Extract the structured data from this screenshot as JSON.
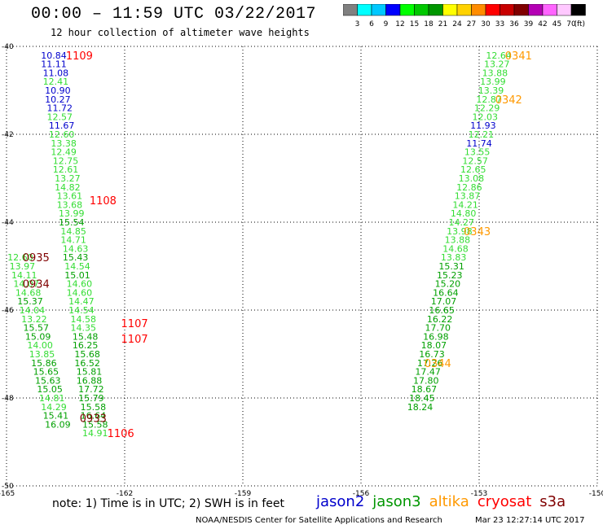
{
  "header": {
    "title": "00:00 – 11:59 UTC 03/22/2017",
    "subtitle": "12 hour collection of altimeter wave heights"
  },
  "color_scale": {
    "labels": [
      "3",
      "6",
      "9",
      "12",
      "15",
      "18",
      "21",
      "24",
      "27",
      "30",
      "33",
      "36",
      "39",
      "42",
      "45",
      "70"
    ],
    "unit": "(ft)",
    "colors": [
      "#808080",
      "#00ffff",
      "#00c8ff",
      "#0000ff",
      "#00ff00",
      "#00c800",
      "#009600",
      "#ffff00",
      "#ffd200",
      "#ff8c00",
      "#ff0000",
      "#c80000",
      "#800000",
      "#b400b4",
      "#ff64ff",
      "#ffc8ff",
      "#000000"
    ]
  },
  "footer": {
    "note": "note:  1) Time is in UTC;  2) SWH is in feet",
    "satellites": [
      {
        "name": "jason2",
        "color": "#0000cc"
      },
      {
        "name": "jason3",
        "color": "#009600"
      },
      {
        "name": "altika",
        "color": "#ff9900"
      },
      {
        "name": "cryosat",
        "color": "#ff0000"
      },
      {
        "name": "s3a",
        "color": "#800000"
      }
    ],
    "credit": "NOAA/NESDIS Center for Satellite Applications and Research",
    "timestamp": "Mar 23 12:27:14 UTC 2017"
  },
  "chart_data": {
    "type": "scatter",
    "title": "00:00 – 11:59 UTC 03/22/2017",
    "subtitle": "12 hour collection of altimeter wave heights",
    "xlim": [
      -165,
      -150
    ],
    "ylim": [
      -50,
      -40
    ],
    "x_ticks": [
      -165,
      -162,
      -159,
      -156,
      -153,
      -150
    ],
    "y_ticks": [
      -40,
      -42,
      -44,
      -46,
      -48,
      -50
    ],
    "grid": true,
    "colors": {
      "grey": "#808080",
      "blue": "#0000cc",
      "light": "#33dd33",
      "green": "#00a000",
      "orange": "#ff9900",
      "red": "#ff0000",
      "maroon": "#800000"
    },
    "points": [
      {
        "x": -163.8,
        "y": -40.2,
        "v": "10.84",
        "c": "blue"
      },
      {
        "x": -163.8,
        "y": -40.4,
        "v": "11.11",
        "c": "blue"
      },
      {
        "x": -163.75,
        "y": -40.6,
        "v": "11.08",
        "c": "blue"
      },
      {
        "x": -163.75,
        "y": -40.8,
        "v": "12.41",
        "c": "light"
      },
      {
        "x": -163.7,
        "y": -41.0,
        "v": "10.90",
        "c": "blue"
      },
      {
        "x": -163.7,
        "y": -41.2,
        "v": "10.27",
        "c": "blue"
      },
      {
        "x": -163.65,
        "y": -41.4,
        "v": "11.72",
        "c": "blue"
      },
      {
        "x": -163.65,
        "y": -41.6,
        "v": "12.57",
        "c": "light"
      },
      {
        "x": -163.6,
        "y": -41.8,
        "v": "11.67",
        "c": "blue"
      },
      {
        "x": -163.6,
        "y": -42.0,
        "v": "12.60",
        "c": "light"
      },
      {
        "x": -163.55,
        "y": -42.2,
        "v": "13.38",
        "c": "light"
      },
      {
        "x": -163.55,
        "y": -42.4,
        "v": "12.49",
        "c": "light"
      },
      {
        "x": -163.5,
        "y": -42.6,
        "v": "12.75",
        "c": "light"
      },
      {
        "x": -163.5,
        "y": -42.8,
        "v": "12.61",
        "c": "light"
      },
      {
        "x": -163.45,
        "y": -43.0,
        "v": "13.27",
        "c": "light"
      },
      {
        "x": -163.45,
        "y": -43.2,
        "v": "14.82",
        "c": "light"
      },
      {
        "x": -163.4,
        "y": -43.4,
        "v": "13.61",
        "c": "light"
      },
      {
        "x": -163.4,
        "y": -43.6,
        "v": "13.68",
        "c": "light"
      },
      {
        "x": -163.35,
        "y": -43.8,
        "v": "13.99",
        "c": "light"
      },
      {
        "x": -163.35,
        "y": -44.0,
        "v": "15.54",
        "c": "green"
      },
      {
        "x": -163.3,
        "y": -44.2,
        "v": "14.85",
        "c": "light"
      },
      {
        "x": -163.3,
        "y": -44.4,
        "v": "14.71",
        "c": "light"
      },
      {
        "x": -163.25,
        "y": -44.6,
        "v": "14.63",
        "c": "light"
      },
      {
        "x": -163.25,
        "y": -44.8,
        "v": "15.43",
        "c": "green"
      },
      {
        "x": -163.2,
        "y": -45.0,
        "v": "14.54",
        "c": "light"
      },
      {
        "x": -163.2,
        "y": -45.2,
        "v": "15.01",
        "c": "green"
      },
      {
        "x": -163.15,
        "y": -45.4,
        "v": "14.60",
        "c": "light"
      },
      {
        "x": -163.15,
        "y": -45.6,
        "v": "14.60",
        "c": "light"
      },
      {
        "x": -163.1,
        "y": -45.8,
        "v": "14.47",
        "c": "light"
      },
      {
        "x": -163.1,
        "y": -46.0,
        "v": "14.54",
        "c": "light"
      },
      {
        "x": -163.05,
        "y": -46.2,
        "v": "14.58",
        "c": "light"
      },
      {
        "x": -163.05,
        "y": -46.4,
        "v": "14.35",
        "c": "light"
      },
      {
        "x": -163.0,
        "y": -46.6,
        "v": "15.48",
        "c": "green"
      },
      {
        "x": -163.0,
        "y": -46.8,
        "v": "16.25",
        "c": "green"
      },
      {
        "x": -162.95,
        "y": -47.0,
        "v": "15.68",
        "c": "green"
      },
      {
        "x": -162.95,
        "y": -47.2,
        "v": "16.52",
        "c": "green"
      },
      {
        "x": -162.9,
        "y": -47.4,
        "v": "15.81",
        "c": "green"
      },
      {
        "x": -162.9,
        "y": -47.6,
        "v": "16.88",
        "c": "green"
      },
      {
        "x": -162.85,
        "y": -47.8,
        "v": "17.72",
        "c": "green"
      },
      {
        "x": -162.85,
        "y": -48.0,
        "v": "15.79",
        "c": "green"
      },
      {
        "x": -162.8,
        "y": -48.2,
        "v": "15.58",
        "c": "green"
      },
      {
        "x": -162.8,
        "y": -48.4,
        "v": "16.64",
        "c": "green"
      },
      {
        "x": -162.75,
        "y": -48.6,
        "v": "15.58",
        "c": "green"
      },
      {
        "x": -162.75,
        "y": -48.8,
        "v": "14.91",
        "c": "light"
      },
      {
        "x": -164.65,
        "y": -44.8,
        "v": "12.60",
        "c": "light"
      },
      {
        "x": -164.6,
        "y": -45.0,
        "v": "13.97",
        "c": "light"
      },
      {
        "x": -164.55,
        "y": -45.2,
        "v": "14.11",
        "c": "light"
      },
      {
        "x": -164.5,
        "y": -45.4,
        "v": "14.07",
        "c": "light"
      },
      {
        "x": -164.45,
        "y": -45.6,
        "v": "14.68",
        "c": "light"
      },
      {
        "x": -164.4,
        "y": -45.8,
        "v": "15.37",
        "c": "green"
      },
      {
        "x": -164.35,
        "y": -46.0,
        "v": "14.04",
        "c": "light"
      },
      {
        "x": -164.3,
        "y": -46.2,
        "v": "13.22",
        "c": "light"
      },
      {
        "x": -164.25,
        "y": -46.4,
        "v": "15.57",
        "c": "green"
      },
      {
        "x": -164.2,
        "y": -46.6,
        "v": "15.09",
        "c": "green"
      },
      {
        "x": -164.15,
        "y": -46.8,
        "v": "14.00",
        "c": "light"
      },
      {
        "x": -164.1,
        "y": -47.0,
        "v": "13.85",
        "c": "light"
      },
      {
        "x": -164.05,
        "y": -47.2,
        "v": "15.86",
        "c": "green"
      },
      {
        "x": -164.0,
        "y": -47.4,
        "v": "15.65",
        "c": "green"
      },
      {
        "x": -163.95,
        "y": -47.6,
        "v": "15.63",
        "c": "green"
      },
      {
        "x": -163.9,
        "y": -47.8,
        "v": "15.05",
        "c": "green"
      },
      {
        "x": -163.85,
        "y": -48.0,
        "v": "14.81",
        "c": "light"
      },
      {
        "x": -163.8,
        "y": -48.2,
        "v": "14.29",
        "c": "light"
      },
      {
        "x": -163.75,
        "y": -48.4,
        "v": "15.41",
        "c": "green"
      },
      {
        "x": -163.7,
        "y": -48.6,
        "v": "16.09",
        "c": "green"
      },
      {
        "x": -152.5,
        "y": -40.2,
        "v": "12.64",
        "c": "light"
      },
      {
        "x": -152.55,
        "y": -40.4,
        "v": "13.27",
        "c": "light"
      },
      {
        "x": -152.6,
        "y": -40.6,
        "v": "13.88",
        "c": "light"
      },
      {
        "x": -152.65,
        "y": -40.8,
        "v": "13.99",
        "c": "light"
      },
      {
        "x": -152.7,
        "y": -41.0,
        "v": "13.39",
        "c": "light"
      },
      {
        "x": -152.75,
        "y": -41.2,
        "v": "12.87",
        "c": "light"
      },
      {
        "x": -152.8,
        "y": -41.4,
        "v": "12.29",
        "c": "light"
      },
      {
        "x": -152.85,
        "y": -41.6,
        "v": "12.03",
        "c": "light"
      },
      {
        "x": -152.9,
        "y": -41.8,
        "v": "11.93",
        "c": "blue"
      },
      {
        "x": -152.95,
        "y": -42.0,
        "v": "12.21",
        "c": "light"
      },
      {
        "x": -153.0,
        "y": -42.2,
        "v": "11.74",
        "c": "blue"
      },
      {
        "x": -153.05,
        "y": -42.4,
        "v": "13.55",
        "c": "light"
      },
      {
        "x": -153.1,
        "y": -42.6,
        "v": "12.57",
        "c": "light"
      },
      {
        "x": -153.15,
        "y": -42.8,
        "v": "12.65",
        "c": "light"
      },
      {
        "x": -153.2,
        "y": -43.0,
        "v": "13.08",
        "c": "light"
      },
      {
        "x": -153.25,
        "y": -43.2,
        "v": "12.86",
        "c": "light"
      },
      {
        "x": -153.3,
        "y": -43.4,
        "v": "13.87",
        "c": "light"
      },
      {
        "x": -153.35,
        "y": -43.6,
        "v": "14.21",
        "c": "light"
      },
      {
        "x": -153.4,
        "y": -43.8,
        "v": "14.80",
        "c": "light"
      },
      {
        "x": -153.45,
        "y": -44.0,
        "v": "14.27",
        "c": "light"
      },
      {
        "x": -153.5,
        "y": -44.2,
        "v": "13.98",
        "c": "light"
      },
      {
        "x": -153.55,
        "y": -44.4,
        "v": "13.88",
        "c": "light"
      },
      {
        "x": -153.6,
        "y": -44.6,
        "v": "14.68",
        "c": "light"
      },
      {
        "x": -153.65,
        "y": -44.8,
        "v": "13.83",
        "c": "light"
      },
      {
        "x": -153.7,
        "y": -45.0,
        "v": "15.31",
        "c": "green"
      },
      {
        "x": -153.75,
        "y": -45.2,
        "v": "15.23",
        "c": "green"
      },
      {
        "x": -153.8,
        "y": -45.4,
        "v": "15.20",
        "c": "green"
      },
      {
        "x": -153.85,
        "y": -45.6,
        "v": "16.64",
        "c": "green"
      },
      {
        "x": -153.9,
        "y": -45.8,
        "v": "17.07",
        "c": "green"
      },
      {
        "x": -153.95,
        "y": -46.0,
        "v": "16.65",
        "c": "green"
      },
      {
        "x": -154.0,
        "y": -46.2,
        "v": "16.22",
        "c": "green"
      },
      {
        "x": -154.05,
        "y": -46.4,
        "v": "17.70",
        "c": "green"
      },
      {
        "x": -154.1,
        "y": -46.6,
        "v": "16.98",
        "c": "green"
      },
      {
        "x": -154.15,
        "y": -46.8,
        "v": "18.07",
        "c": "green"
      },
      {
        "x": -154.2,
        "y": -47.0,
        "v": "16.73",
        "c": "green"
      },
      {
        "x": -154.25,
        "y": -47.2,
        "v": "17.26",
        "c": "green"
      },
      {
        "x": -154.3,
        "y": -47.4,
        "v": "17.47",
        "c": "green"
      },
      {
        "x": -154.35,
        "y": -47.6,
        "v": "17.80",
        "c": "green"
      },
      {
        "x": -154.4,
        "y": -47.8,
        "v": "18.67",
        "c": "green"
      },
      {
        "x": -154.45,
        "y": -48.0,
        "v": "18.45",
        "c": "green"
      },
      {
        "x": -154.5,
        "y": -48.2,
        "v": "18.24",
        "c": "green"
      }
    ],
    "time_labels": [
      {
        "x": -163.15,
        "y": -40.2,
        "text": "1109",
        "c": "red"
      },
      {
        "x": -162.55,
        "y": -43.5,
        "text": "1108",
        "c": "red"
      },
      {
        "x": -161.75,
        "y": -46.3,
        "text": "1107",
        "c": "red"
      },
      {
        "x": -161.75,
        "y": -46.65,
        "text": "1107",
        "c": "red"
      },
      {
        "x": -162.1,
        "y": -48.8,
        "text": "1106",
        "c": "red"
      },
      {
        "x": -164.25,
        "y": -44.8,
        "text": "0935",
        "c": "maroon"
      },
      {
        "x": -164.25,
        "y": -45.4,
        "text": "0934",
        "c": "maroon"
      },
      {
        "x": -162.8,
        "y": -48.45,
        "text": "0933",
        "c": "maroon"
      },
      {
        "x": -152.0,
        "y": -40.2,
        "text": "0341",
        "c": "orange"
      },
      {
        "x": -152.25,
        "y": -41.2,
        "text": "0342",
        "c": "orange"
      },
      {
        "x": -153.05,
        "y": -44.2,
        "text": "0343",
        "c": "orange"
      },
      {
        "x": -154.05,
        "y": -47.2,
        "text": "0344",
        "c": "orange"
      }
    ]
  }
}
